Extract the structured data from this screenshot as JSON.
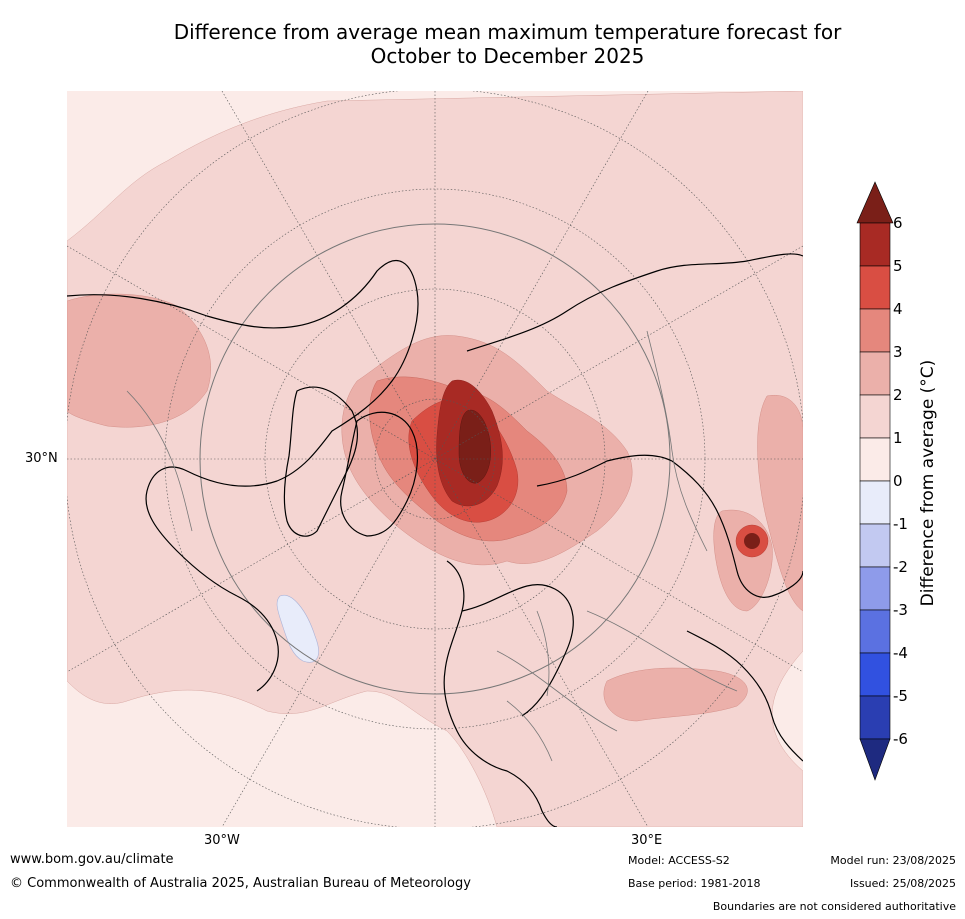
{
  "title": {
    "line1": "Difference from average mean maximum temperature forecast for",
    "line2": "October to December 2025"
  },
  "map": {
    "lat_label": "30°N",
    "lon_labels": [
      "30°W",
      "30°E"
    ]
  },
  "legend": {
    "label": "Difference from average (°C)",
    "ticks": [
      "6",
      "5",
      "4",
      "3",
      "2",
      "1",
      "0",
      "-1",
      "-2",
      "-3",
      "-4",
      "-5",
      "-6"
    ],
    "colors": {
      "above_6": "#7a1f18",
      "5_6": "#a82a24",
      "4_5": "#d94e43",
      "3_4": "#e5877d",
      "2_3": "#ebb0aa",
      "1_2": "#f4d5d2",
      "0_1": "#fbebe8",
      "-1_0": "#e8ecfa",
      "-2_-1": "#c2c9f1",
      "-3_-2": "#8e9bea",
      "-4_-3": "#5b71e1",
      "-5_-4": "#3151e0",
      "-6_-5": "#2a3eb2",
      "below_-6": "#1e2a80"
    }
  },
  "footer": {
    "website": "www.bom.gov.au/climate",
    "copyright": "© Commonwealth of Australia 2025, Australian Bureau of Meteorology",
    "model": "Model: ACCESS-S2",
    "base_period": "Base period: 1981-2018",
    "model_run": "Model run: 23/08/2025",
    "issued": "Issued: 25/08/2025",
    "disclaimer": "Boundaries are not considered authoritative"
  }
}
